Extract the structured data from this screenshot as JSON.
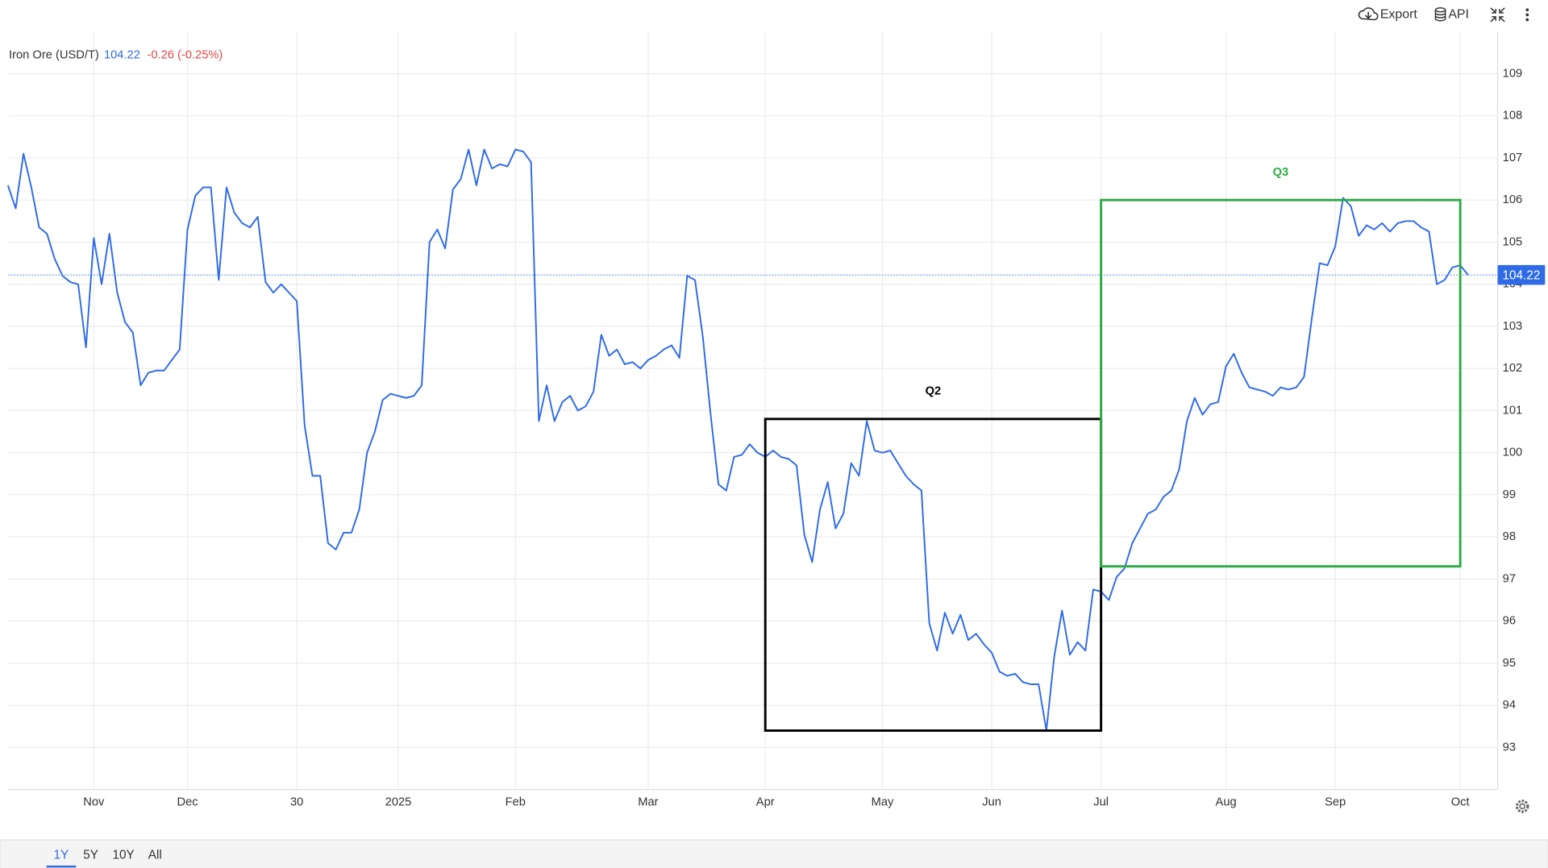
{
  "toolbar": [
    "Export",
    "API"
  ],
  "range_buttons": [
    "1Y",
    "5Y",
    "10Y",
    "All"
  ],
  "selected_range": "1Y",
  "chart_data": {
    "type": "line",
    "title": "Iron Ore (USD/T)",
    "price": 104.22,
    "change": "-0.26 (-0.25%)",
    "color": "#2f6be6",
    "grid": true,
    "xlim": [
      0,
      187
    ],
    "xticks": [
      {
        "value": 11,
        "label": "Nov"
      },
      {
        "value": 23,
        "label": "Dec"
      },
      {
        "value": 37,
        "label": "30"
      },
      {
        "value": 50,
        "label": "2025"
      },
      {
        "value": 65,
        "label": "Feb"
      },
      {
        "value": 82,
        "label": "Mar"
      },
      {
        "value": 97,
        "label": "Apr"
      },
      {
        "value": 112,
        "label": "May"
      },
      {
        "value": 126,
        "label": "Jun"
      },
      {
        "value": 140,
        "label": "Jul"
      },
      {
        "value": 156,
        "label": "Aug"
      },
      {
        "value": 170,
        "label": "Sep"
      },
      {
        "value": 186,
        "label": "Oct"
      }
    ],
    "ylim": [
      92,
      110
    ],
    "yticks": [
      93,
      94,
      95,
      96,
      97,
      98,
      99,
      100,
      101,
      102,
      103,
      104,
      105,
      106,
      107,
      108,
      109
    ],
    "values": [
      106.35,
      105.8,
      107.1,
      106.3,
      105.35,
      105.2,
      104.6,
      104.2,
      104.05,
      104.0,
      102.5,
      105.1,
      104.0,
      105.2,
      103.8,
      103.1,
      102.85,
      101.6,
      101.9,
      101.95,
      101.95,
      102.2,
      102.45,
      105.3,
      106.1,
      106.3,
      106.3,
      104.1,
      106.3,
      105.7,
      105.45,
      105.35,
      105.6,
      104.05,
      103.8,
      104.0,
      103.8,
      103.6,
      100.65,
      99.45,
      99.45,
      97.85,
      97.7,
      98.1,
      98.1,
      98.65,
      100.0,
      100.5,
      101.25,
      101.4,
      101.35,
      101.3,
      101.35,
      101.6,
      105.0,
      105.3,
      104.85,
      106.25,
      106.5,
      107.2,
      106.35,
      107.2,
      106.75,
      106.85,
      106.8,
      107.2,
      107.15,
      106.9,
      100.75,
      101.6,
      100.75,
      101.2,
      101.35,
      101.0,
      101.1,
      101.45,
      102.8,
      102.3,
      102.45,
      102.1,
      102.15,
      102.0,
      102.2,
      102.3,
      102.45,
      102.55,
      102.25,
      104.2,
      104.1,
      102.75,
      100.9,
      99.25,
      99.1,
      99.9,
      99.95,
      100.2,
      100.0,
      99.9,
      100.05,
      99.9,
      99.85,
      99.7,
      98.05,
      97.4,
      98.65,
      99.3,
      98.2,
      98.55,
      99.75,
      99.45,
      100.75,
      100.05,
      100.0,
      100.05,
      99.75,
      99.45,
      99.25,
      99.1,
      95.95,
      95.3,
      96.2,
      95.7,
      96.15,
      95.55,
      95.7,
      95.45,
      95.25,
      94.8,
      94.7,
      94.75,
      94.55,
      94.5,
      94.5,
      93.4,
      95.15,
      96.25,
      95.2,
      95.5,
      95.3,
      96.75,
      96.7,
      96.5,
      97.05,
      97.25,
      97.85,
      98.2,
      98.55,
      98.65,
      98.95,
      99.1,
      99.6,
      100.75,
      101.3,
      100.9,
      101.15,
      101.2,
      102.05,
      102.35,
      101.9,
      101.55,
      101.5,
      101.45,
      101.35,
      101.55,
      101.5,
      101.55,
      101.8,
      103.2,
      104.5,
      104.45,
      104.9,
      106.05,
      105.85,
      105.15,
      105.4,
      105.3,
      105.45,
      105.25,
      105.45,
      105.5,
      105.5,
      105.35,
      105.25,
      104.0,
      104.1,
      104.4,
      104.45,
      104.22
    ],
    "annotations": [
      {
        "label": "Q2",
        "color": "#000000",
        "x": [
          97,
          140
        ],
        "y": [
          93.4,
          100.8
        ]
      },
      {
        "label": "Q3",
        "color": "#2eaa44",
        "x": [
          140,
          186
        ],
        "y": [
          97.3,
          106.0
        ]
      }
    ]
  }
}
